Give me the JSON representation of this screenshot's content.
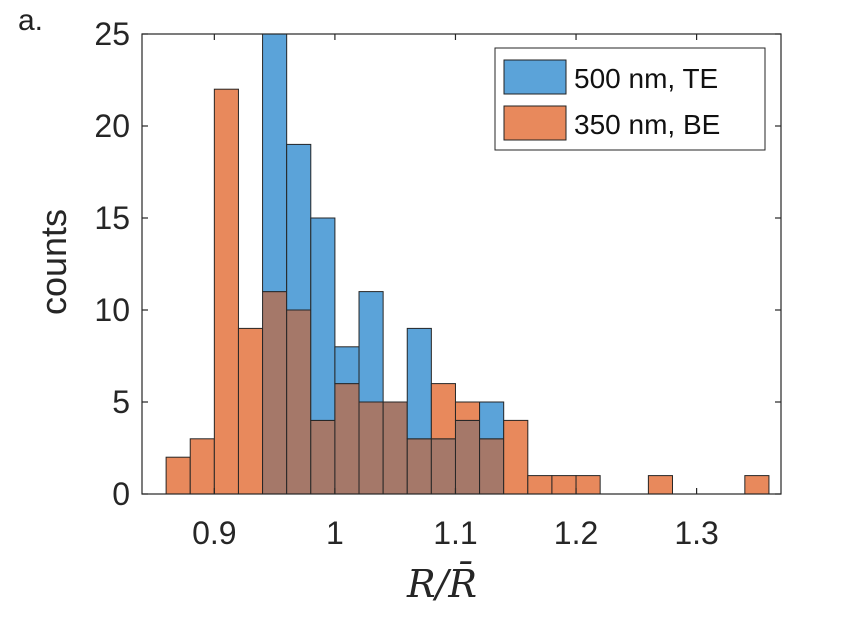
{
  "panel_label": "a.",
  "chart_data": {
    "type": "histogram",
    "xlabel": "R/R̄",
    "ylabel": "counts",
    "xlim": [
      0.84,
      1.37
    ],
    "ylim": [
      0,
      25
    ],
    "bin_width": 0.02,
    "xticks": [
      0.9,
      1.0,
      1.1,
      1.2,
      1.3
    ],
    "xtick_labels": [
      "0.9",
      "1",
      "1.1",
      "1.2",
      "1.3"
    ],
    "yticks": [
      0,
      5,
      10,
      15,
      20,
      25
    ],
    "ytick_labels": [
      "0",
      "5",
      "10",
      "15",
      "20",
      "25"
    ],
    "legend_position": "top-right",
    "series": [
      {
        "name": "500 nm, TE",
        "color": "#5BA3D9",
        "bin_starts": [
          0.94,
          0.96,
          0.98,
          1.0,
          1.02,
          1.04,
          1.06,
          1.08,
          1.1,
          1.12
        ],
        "values": [
          25,
          19,
          15,
          8,
          11,
          5,
          9,
          3,
          4,
          5
        ]
      },
      {
        "name": "350 nm, BE",
        "color": "#E8895C",
        "bin_starts": [
          0.86,
          0.88,
          0.9,
          0.92,
          0.94,
          0.96,
          0.98,
          1.0,
          1.02,
          1.04,
          1.06,
          1.08,
          1.1,
          1.12,
          1.14,
          1.16,
          1.18,
          1.2,
          1.22,
          1.24,
          1.26,
          1.28,
          1.3,
          1.32,
          1.34
        ],
        "values": [
          2,
          3,
          22,
          9,
          11,
          10,
          4,
          6,
          5,
          5,
          3,
          6,
          5,
          3,
          4,
          1,
          1,
          1,
          0,
          0,
          1,
          0,
          0,
          0,
          1
        ]
      }
    ],
    "overlap_color": "#A57869"
  }
}
